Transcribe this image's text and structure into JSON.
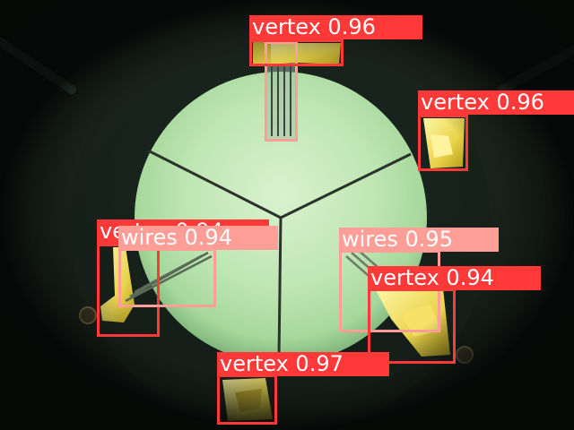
{
  "classes": {
    "vertex": {
      "color": "#ff3838"
    },
    "wires": {
      "color": "#ff9d97"
    }
  },
  "detections": [
    {
      "id": "vertex-top",
      "cls": "vertex",
      "label": "vertex 0.96",
      "confidence": 0.96
    },
    {
      "id": "wires-top",
      "cls": "wires",
      "label": "",
      "confidence": null
    },
    {
      "id": "vertex-right",
      "cls": "vertex",
      "label": "vertex 0.96",
      "confidence": 0.96
    },
    {
      "id": "vertex-left",
      "cls": "vertex",
      "label": "vertex 0.94",
      "confidence": 0.94
    },
    {
      "id": "wires-left",
      "cls": "wires",
      "label": "wires 0.94",
      "confidence": 0.94
    },
    {
      "id": "wires-right",
      "cls": "wires",
      "label": "wires 0.95",
      "confidence": 0.95
    },
    {
      "id": "vertex-lower-right",
      "cls": "vertex",
      "label": "vertex 0.94",
      "confidence": 0.94
    },
    {
      "id": "vertex-bottom",
      "cls": "vertex",
      "label": "vertex 0.97",
      "confidence": 0.97
    }
  ]
}
